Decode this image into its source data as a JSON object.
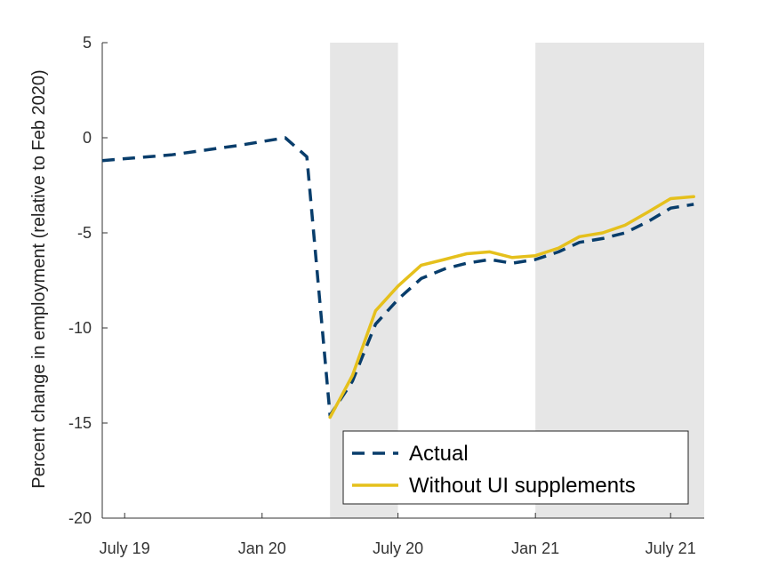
{
  "chart_data": {
    "type": "line",
    "title": "",
    "xlabel": "",
    "ylabel": "Percent change in employment (relative to Feb 2020)",
    "ylim": [
      -20,
      5
    ],
    "yticks": [
      5,
      0,
      -5,
      -10,
      -15,
      -20
    ],
    "xlim": [
      "2019-06-01",
      "2021-08-15"
    ],
    "xticks": [
      {
        "date": "2019-07-01",
        "label": "July 19"
      },
      {
        "date": "2020-01-01",
        "label": "Jan 20"
      },
      {
        "date": "2020-07-01",
        "label": "July 20"
      },
      {
        "date": "2021-01-01",
        "label": "Jan 21"
      },
      {
        "date": "2021-07-01",
        "label": "July 21"
      }
    ],
    "shaded_periods": [
      {
        "start": "2020-04-01",
        "end": "2020-07-01",
        "color": "#e6e6e6"
      },
      {
        "start": "2021-01-01",
        "end": "2021-08-15",
        "color": "#e6e6e6"
      }
    ],
    "grid": false,
    "legend_position": "bottom-right",
    "series": [
      {
        "name": "Actual",
        "color": "#083d6b",
        "style": "dashed",
        "points": [
          {
            "x": "2019-06-01",
            "y": -1.2
          },
          {
            "x": "2019-09-01",
            "y": -0.9
          },
          {
            "x": "2019-12-01",
            "y": -0.4
          },
          {
            "x": "2020-02-01",
            "y": 0.0
          },
          {
            "x": "2020-03-01",
            "y": -1.0
          },
          {
            "x": "2020-04-01",
            "y": -14.6
          },
          {
            "x": "2020-05-01",
            "y": -12.8
          },
          {
            "x": "2020-06-01",
            "y": -9.8
          },
          {
            "x": "2020-07-01",
            "y": -8.5
          },
          {
            "x": "2020-08-01",
            "y": -7.4
          },
          {
            "x": "2020-09-01",
            "y": -6.9
          },
          {
            "x": "2020-10-01",
            "y": -6.6
          },
          {
            "x": "2020-11-01",
            "y": -6.4
          },
          {
            "x": "2020-12-01",
            "y": -6.6
          },
          {
            "x": "2021-01-01",
            "y": -6.4
          },
          {
            "x": "2021-02-01",
            "y": -6.0
          },
          {
            "x": "2021-03-01",
            "y": -5.5
          },
          {
            "x": "2021-04-01",
            "y": -5.3
          },
          {
            "x": "2021-05-01",
            "y": -5.0
          },
          {
            "x": "2021-06-01",
            "y": -4.4
          },
          {
            "x": "2021-07-01",
            "y": -3.7
          },
          {
            "x": "2021-08-01",
            "y": -3.5
          }
        ]
      },
      {
        "name": "Without UI supplements",
        "color": "#e5c01c",
        "style": "solid",
        "points": [
          {
            "x": "2020-04-01",
            "y": -14.7
          },
          {
            "x": "2020-05-01",
            "y": -12.5
          },
          {
            "x": "2020-06-01",
            "y": -9.1
          },
          {
            "x": "2020-07-01",
            "y": -7.8
          },
          {
            "x": "2020-08-01",
            "y": -6.7
          },
          {
            "x": "2020-09-01",
            "y": -6.4
          },
          {
            "x": "2020-10-01",
            "y": -6.1
          },
          {
            "x": "2020-11-01",
            "y": -6.0
          },
          {
            "x": "2020-12-01",
            "y": -6.3
          },
          {
            "x": "2021-01-01",
            "y": -6.2
          },
          {
            "x": "2021-02-01",
            "y": -5.8
          },
          {
            "x": "2021-03-01",
            "y": -5.2
          },
          {
            "x": "2021-04-01",
            "y": -5.0
          },
          {
            "x": "2021-05-01",
            "y": -4.6
          },
          {
            "x": "2021-06-01",
            "y": -3.9
          },
          {
            "x": "2021-07-01",
            "y": -3.2
          },
          {
            "x": "2021-08-01",
            "y": -3.1
          }
        ]
      }
    ]
  }
}
